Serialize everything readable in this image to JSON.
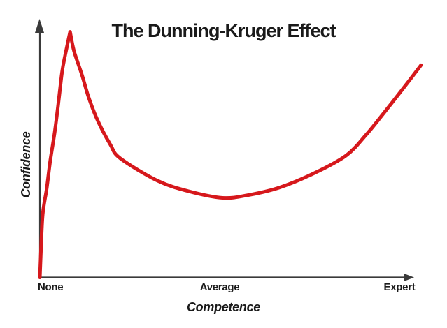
{
  "chart_data": {
    "type": "line",
    "title": "The Dunning-Kruger Effect",
    "xlabel": "Competence",
    "ylabel": "Confidence",
    "x_ticks": [
      {
        "label": "None",
        "x": 0,
        "align": "start"
      },
      {
        "label": "Average",
        "x": 50,
        "align": "center"
      },
      {
        "label": "Expert",
        "x": 100,
        "align": "center"
      }
    ],
    "xlim": [
      0,
      106
    ],
    "ylim": [
      0,
      100
    ],
    "grid": false,
    "legend": false,
    "axis_arrows": true,
    "series": [
      {
        "name": "Confidence",
        "color": "#d6181c",
        "line_width": 5,
        "sharp_peak_index": 9,
        "points": [
          [
            0,
            0
          ],
          [
            0.3,
            10.4
          ],
          [
            0.8,
            25.0
          ],
          [
            1.9,
            35.2
          ],
          [
            2.9,
            46.3
          ],
          [
            4.1,
            57.3
          ],
          [
            5.1,
            68.4
          ],
          [
            6.0,
            79.4
          ],
          [
            6.6,
            84.9
          ],
          [
            8.4,
            97.2
          ],
          [
            9.5,
            89.6
          ],
          [
            11.7,
            80.2
          ],
          [
            13.6,
            71.1
          ],
          [
            16.1,
            62.0
          ],
          [
            19.6,
            52.6
          ],
          [
            22.4,
            47.1
          ],
          [
            32.7,
            38.3
          ],
          [
            41.4,
            34.1
          ],
          [
            50.8,
            31.5
          ],
          [
            58.0,
            32.6
          ],
          [
            66.7,
            35.6
          ],
          [
            76.5,
            41.4
          ],
          [
            85.2,
            48.3
          ],
          [
            90.7,
            56.4
          ],
          [
            95.9,
            65.5
          ],
          [
            101.2,
            75.1
          ],
          [
            106.0,
            84.0
          ]
        ]
      }
    ]
  },
  "colors": {
    "curve": "#d6181c",
    "axis": "#3a3a3a",
    "text": "#1a1a1a",
    "background": "#ffffff"
  }
}
